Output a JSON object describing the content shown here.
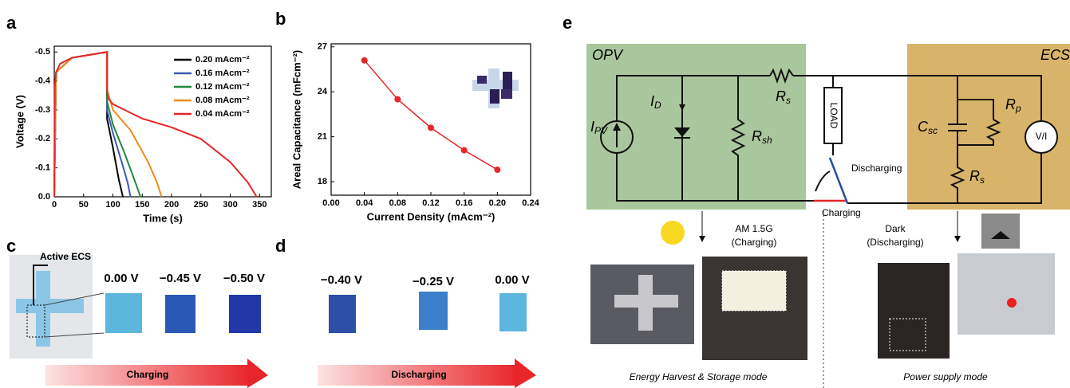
{
  "panel_labels": [
    "a",
    "b",
    "c",
    "d",
    "e"
  ],
  "chart_data": [
    {
      "type": "line",
      "x_label": "Time (s)",
      "y_label": "Voltage (V)",
      "xlim": [
        0,
        370
      ],
      "xticks": [
        0,
        50,
        100,
        150,
        200,
        250,
        300,
        350
      ],
      "ylim": [
        0,
        -0.52
      ],
      "yticks": [
        -0.5,
        -0.4,
        -0.3,
        -0.2,
        -0.1,
        {
          "value": 0,
          "label": "0.0"
        }
      ],
      "series": [
        {
          "name": "0.20 mAcm⁻²",
          "color": "#000000",
          "x": [
            0,
            3,
            30,
            90,
            90,
            100,
            110,
            117
          ],
          "values": [
            0,
            -0.43,
            -0.48,
            -0.5,
            -0.27,
            -0.17,
            -0.06,
            0
          ]
        },
        {
          "name": "0.16 mAcm⁻²",
          "color": "#3a5bb5",
          "x": [
            0,
            3,
            30,
            90,
            90,
            100,
            115,
            125,
            130
          ],
          "values": [
            0,
            -0.43,
            -0.48,
            -0.5,
            -0.3,
            -0.22,
            -0.12,
            -0.05,
            0
          ]
        },
        {
          "name": "0.12 mAcm⁻²",
          "color": "#1f8a3b",
          "x": [
            0,
            3,
            30,
            90,
            90,
            100,
            120,
            140,
            147
          ],
          "values": [
            0,
            -0.43,
            -0.48,
            -0.5,
            -0.33,
            -0.25,
            -0.15,
            -0.04,
            0
          ]
        },
        {
          "name": "0.08 mAcm⁻²",
          "color": "#f08a1c",
          "x": [
            0,
            3,
            30,
            90,
            90,
            100,
            130,
            160,
            175,
            183
          ],
          "values": [
            0,
            -0.43,
            -0.48,
            -0.5,
            -0.37,
            -0.3,
            -0.23,
            -0.12,
            -0.05,
            0
          ]
        },
        {
          "name": "0.04 mAcm⁻²",
          "color": "#e8262a",
          "x": [
            0,
            1,
            3,
            10,
            30,
            60,
            90,
            90,
            92,
            100,
            150,
            200,
            250,
            300,
            330,
            345
          ],
          "values": [
            0,
            -0.38,
            -0.43,
            -0.46,
            -0.48,
            -0.49,
            -0.5,
            -0.37,
            -0.34,
            -0.32,
            -0.27,
            -0.24,
            -0.2,
            -0.12,
            -0.05,
            0
          ]
        }
      ]
    },
    {
      "type": "line",
      "x_label": "Current Density (mAcm⁻²)",
      "y_label": "Areal Capacitance (mFcm⁻²)",
      "xlim": [
        0,
        0.24
      ],
      "xticks": [
        {
          "value": 0,
          "label": "0.00"
        },
        0.04,
        0.08,
        0.12,
        0.16,
        {
          "value": 0.2,
          "label": "0.20"
        },
        0.24
      ],
      "ylim": [
        17.1,
        27.2
      ],
      "yticks": [
        18,
        21,
        24,
        27
      ],
      "color": "#e8262a",
      "markers": true,
      "x": [
        0.04,
        0.08,
        0.12,
        0.16,
        0.2
      ],
      "values": [
        26.1,
        23.5,
        21.6,
        20.1,
        18.8
      ]
    }
  ],
  "panel_c": {
    "label": "Active ECS",
    "voltages": [
      "0.00 V",
      "−0.45 V",
      "−0.50 V"
    ],
    "arrow": "Charging"
  },
  "panel_d": {
    "voltages": [
      "−0.40 V",
      "−0.25 V",
      "0.00 V"
    ],
    "arrow": "Discharging"
  },
  "panel_e": {
    "opv": "OPV",
    "ecs": "ECS",
    "ipv": {
      "symbol": "I",
      "sub": "PV"
    },
    "id": {
      "symbol": "I",
      "sub": "D"
    },
    "rs1": {
      "symbol": "R",
      "sub": "s"
    },
    "rsh": {
      "symbol": "R",
      "sub": "sh"
    },
    "load": "LOAD",
    "csc": {
      "symbol": "C",
      "sub": "sc"
    },
    "rp": {
      "symbol": "R",
      "sub": "p"
    },
    "vi": "V/I",
    "rs2": {
      "symbol": "R",
      "sub": "s"
    },
    "discharging": "Discharging",
    "charging": "Charging",
    "light": [
      "AM 1.5G",
      "(Charging)"
    ],
    "dark": [
      "Dark",
      "(Discharging)"
    ],
    "mode_left": "Energy Harvest & Storage mode",
    "mode_right": "Power supply mode"
  }
}
